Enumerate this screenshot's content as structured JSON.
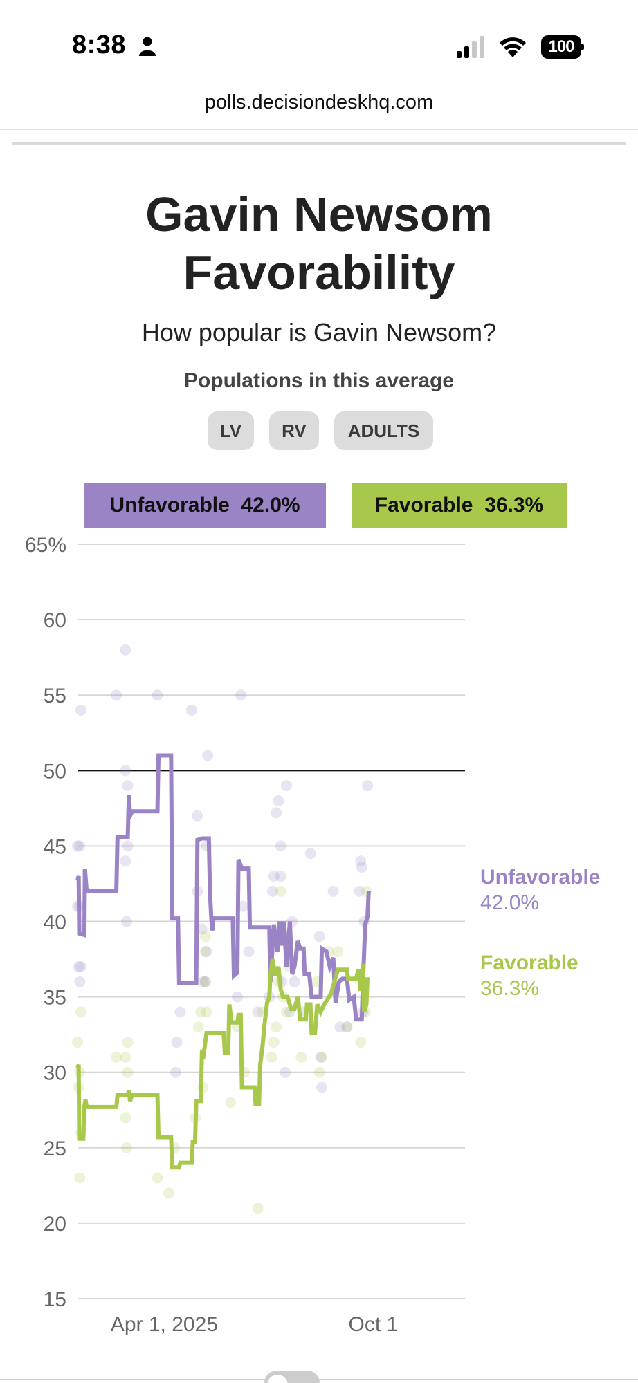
{
  "status_bar": {
    "time": "8:38",
    "battery": "100",
    "icons": [
      "person-icon",
      "signal-icon",
      "wifi-icon",
      "battery-icon"
    ]
  },
  "browser": {
    "url": "polls.decisiondeskhq.com"
  },
  "page": {
    "title_line1": "Gavin Newsom",
    "title_line2": "Favorability",
    "subtitle": "How popular is Gavin Newsom?",
    "populations_label": "Populations in this average",
    "populations": [
      "LV",
      "RV",
      "ADULTS"
    ]
  },
  "legend": {
    "unfavorable": {
      "label": "Unfavorable",
      "value": "42.0%",
      "color": "#9b84c6"
    },
    "favorable": {
      "label": "Favorable",
      "value": "36.3%",
      "color": "#a8c84c"
    }
  },
  "chart_data": {
    "type": "line",
    "title": "Gavin Newsom Favorability",
    "xlabel": "",
    "ylabel": "",
    "x_unit": "days since Jan 15, 2025",
    "xlim": [
      0,
      340
    ],
    "ylim": [
      15,
      65
    ],
    "y_ticks": [
      65,
      60,
      55,
      50,
      45,
      40,
      35,
      30,
      25,
      20,
      15
    ],
    "y_tick_labels": [
      "65%",
      "60",
      "55",
      "50",
      "45",
      "40",
      "35",
      "30",
      "25",
      "20",
      "15"
    ],
    "x_ticks": [
      {
        "x": 76,
        "label": "Apr 1, 2025"
      },
      {
        "x": 259,
        "label": "Oct 1"
      }
    ],
    "reference_line": 50,
    "grid": true,
    "end_labels": [
      {
        "series": "Unfavorable",
        "label": "Unfavorable",
        "value": "42.0%"
      },
      {
        "series": "Favorable",
        "label": "Favorable",
        "value": "36.3%"
      }
    ],
    "series": [
      {
        "name": "Unfavorable",
        "color": "#9b84c6",
        "points": [
          [
            0,
            42.7
          ],
          [
            1,
            43.0
          ],
          [
            1.5,
            39.2
          ],
          [
            6,
            39.1
          ],
          [
            6.5,
            43.5
          ],
          [
            8,
            42.0
          ],
          [
            34,
            42.0
          ],
          [
            35,
            45.6
          ],
          [
            44,
            45.6
          ],
          [
            45,
            48.4
          ],
          [
            46,
            47.0
          ],
          [
            48,
            47.3
          ],
          [
            70,
            47.3
          ],
          [
            71,
            51.0
          ],
          [
            82,
            51.0
          ],
          [
            83,
            40.2
          ],
          [
            88,
            40.2
          ],
          [
            89,
            35.9
          ],
          [
            104,
            35.9
          ],
          [
            105,
            45.4
          ],
          [
            109,
            45.5
          ],
          [
            115,
            45.5
          ],
          [
            116,
            42.0
          ],
          [
            117,
            40.5
          ],
          [
            118,
            39.4
          ],
          [
            119,
            40.2
          ],
          [
            136,
            40.2
          ],
          [
            137,
            36.4
          ],
          [
            140,
            36.6
          ],
          [
            141,
            44.1
          ],
          [
            144,
            43.5
          ],
          [
            150,
            43.5
          ],
          [
            151,
            39.6
          ],
          [
            168,
            39.6
          ],
          [
            169,
            36.0
          ],
          [
            172,
            39.8
          ],
          [
            175,
            38.0
          ],
          [
            177,
            40.0
          ],
          [
            179,
            38.4
          ],
          [
            181,
            40.0
          ],
          [
            183,
            37.0
          ],
          [
            186,
            40.0
          ],
          [
            188,
            36.5
          ],
          [
            190,
            37.0
          ],
          [
            193,
            38.7
          ],
          [
            195,
            38.2
          ],
          [
            198,
            38.2
          ],
          [
            199,
            36.5
          ],
          [
            203,
            36.5
          ],
          [
            205,
            35.0
          ],
          [
            213,
            35.0
          ],
          [
            214,
            38.2
          ],
          [
            218,
            38.0
          ],
          [
            221,
            37.0
          ],
          [
            224,
            37.6
          ],
          [
            226,
            34.6
          ],
          [
            229,
            36.0
          ],
          [
            232,
            36.2
          ],
          [
            236,
            36.2
          ],
          [
            238,
            34.8
          ],
          [
            242,
            35.0
          ],
          [
            244,
            33.5
          ],
          [
            249,
            33.5
          ],
          [
            250,
            36.0
          ],
          [
            252,
            39.8
          ],
          [
            254,
            40.3
          ],
          [
            255,
            42.0
          ]
        ]
      },
      {
        "name": "Favorable",
        "color": "#a8c84c",
        "points": [
          [
            0,
            30.3
          ],
          [
            1,
            30.5
          ],
          [
            1.5,
            25.6
          ],
          [
            5,
            25.6
          ],
          [
            6,
            27.7
          ],
          [
            7,
            28.2
          ],
          [
            8,
            27.7
          ],
          [
            34,
            27.7
          ],
          [
            35,
            28.5
          ],
          [
            44,
            28.5
          ],
          [
            45,
            28.8
          ],
          [
            46,
            28.1
          ],
          [
            48,
            28.5
          ],
          [
            70,
            28.5
          ],
          [
            71,
            25.7
          ],
          [
            82,
            25.7
          ],
          [
            83,
            23.7
          ],
          [
            89,
            23.7
          ],
          [
            90,
            24.0
          ],
          [
            100,
            24.0
          ],
          [
            101,
            25.4
          ],
          [
            103,
            25.4
          ],
          [
            104,
            28.1
          ],
          [
            108,
            28.1
          ],
          [
            109,
            31.5
          ],
          [
            110,
            30.9
          ],
          [
            113,
            32.6
          ],
          [
            128,
            32.6
          ],
          [
            129,
            31.3
          ],
          [
            132,
            31.3
          ],
          [
            133,
            34.5
          ],
          [
            135,
            33.3
          ],
          [
            140,
            33.3
          ],
          [
            141,
            33.8
          ],
          [
            143,
            33.8
          ],
          [
            144,
            29.0
          ],
          [
            155,
            29.0
          ],
          [
            156,
            27.9
          ],
          [
            159,
            27.9
          ],
          [
            160,
            30.5
          ],
          [
            162,
            31.7
          ],
          [
            164,
            33.3
          ],
          [
            166,
            34.6
          ],
          [
            168,
            35.0
          ],
          [
            169,
            36.5
          ],
          [
            171,
            37.5
          ],
          [
            173,
            36.4
          ],
          [
            176,
            37.0
          ],
          [
            178,
            35.5
          ],
          [
            180,
            35.0
          ],
          [
            184,
            35.0
          ],
          [
            187,
            34.2
          ],
          [
            190,
            34.2
          ],
          [
            193,
            35.0
          ],
          [
            195,
            33.5
          ],
          [
            200,
            33.5
          ],
          [
            201,
            34.5
          ],
          [
            204,
            34.5
          ],
          [
            205,
            32.6
          ],
          [
            208,
            32.6
          ],
          [
            210,
            34.5
          ],
          [
            213,
            34.0
          ],
          [
            216,
            34.5
          ],
          [
            222,
            35.2
          ],
          [
            228,
            36.8
          ],
          [
            236,
            36.8
          ],
          [
            237,
            36.2
          ],
          [
            244,
            36.2
          ],
          [
            246,
            36.8
          ],
          [
            248,
            35.4
          ],
          [
            250,
            37.2
          ],
          [
            251,
            34.0
          ],
          [
            253,
            34.5
          ],
          [
            254,
            36.3
          ]
        ]
      }
    ],
    "poll_points": {
      "Unfavorable": [
        [
          0,
          45
        ],
        [
          2,
          45
        ],
        [
          3,
          54
        ],
        [
          0,
          41
        ],
        [
          2,
          41
        ],
        [
          1,
          37
        ],
        [
          3,
          37
        ],
        [
          2,
          36
        ],
        [
          34,
          55
        ],
        [
          42,
          58
        ],
        [
          42,
          50
        ],
        [
          44,
          49
        ],
        [
          42,
          44
        ],
        [
          44,
          45
        ],
        [
          43,
          40
        ],
        [
          70,
          55
        ],
        [
          86,
          30
        ],
        [
          87,
          32
        ],
        [
          90,
          34
        ],
        [
          100,
          54
        ],
        [
          105,
          47
        ],
        [
          105,
          42
        ],
        [
          109,
          39.5
        ],
        [
          110,
          36
        ],
        [
          113,
          45
        ],
        [
          114,
          51
        ],
        [
          113,
          38
        ],
        [
          112,
          36
        ],
        [
          140,
          35
        ],
        [
          143,
          55
        ],
        [
          145,
          41
        ],
        [
          150,
          38
        ],
        [
          158,
          34
        ],
        [
          168,
          35
        ],
        [
          171,
          42
        ],
        [
          172,
          43
        ],
        [
          174,
          47.2
        ],
        [
          176,
          48
        ],
        [
          178,
          45
        ],
        [
          178,
          43
        ],
        [
          179,
          36
        ],
        [
          182,
          30
        ],
        [
          183,
          49
        ],
        [
          186,
          34
        ],
        [
          188,
          40
        ],
        [
          190,
          36
        ],
        [
          198,
          34
        ],
        [
          204,
          44.5
        ],
        [
          212,
          39
        ],
        [
          213,
          31
        ],
        [
          214,
          29
        ],
        [
          224,
          42
        ],
        [
          230,
          33
        ],
        [
          236,
          33
        ],
        [
          247,
          42
        ],
        [
          248,
          44
        ],
        [
          249,
          43.6
        ],
        [
          251,
          40
        ],
        [
          250,
          34
        ],
        [
          254,
          49
        ]
      ],
      "Favorable": [
        [
          0,
          32
        ],
        [
          2,
          23
        ],
        [
          3,
          34
        ],
        [
          1,
          29
        ],
        [
          3,
          26
        ],
        [
          2,
          30
        ],
        [
          34,
          31
        ],
        [
          42,
          31
        ],
        [
          44,
          32
        ],
        [
          42,
          27
        ],
        [
          43,
          25
        ],
        [
          44,
          30
        ],
        [
          70,
          23
        ],
        [
          80,
          22
        ],
        [
          85,
          25
        ],
        [
          103,
          27
        ],
        [
          106,
          33
        ],
        [
          110,
          29
        ],
        [
          112,
          39
        ],
        [
          112,
          38
        ],
        [
          112,
          36
        ],
        [
          113,
          34
        ],
        [
          108,
          34
        ],
        [
          134,
          28
        ],
        [
          146,
          30
        ],
        [
          140,
          33
        ],
        [
          158,
          21
        ],
        [
          162,
          34
        ],
        [
          170,
          31
        ],
        [
          172,
          32
        ],
        [
          174,
          33
        ],
        [
          176,
          36
        ],
        [
          178,
          42
        ],
        [
          180,
          35
        ],
        [
          183,
          34
        ],
        [
          185,
          37
        ],
        [
          196,
          31
        ],
        [
          210,
          36
        ],
        [
          212,
          30
        ],
        [
          214,
          31
        ],
        [
          220,
          38
        ],
        [
          228,
          38
        ],
        [
          236,
          33
        ],
        [
          248,
          32
        ],
        [
          253,
          42
        ],
        [
          252,
          34
        ]
      ]
    }
  }
}
